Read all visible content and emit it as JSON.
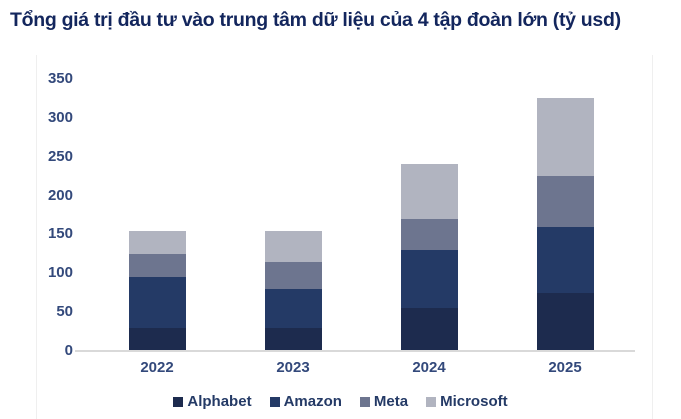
{
  "chart_data": {
    "type": "bar",
    "variant": "stacked-column",
    "title": "Tổng giá trị đầu tư vào trung tâm dữ liệu của 4 tập đoàn lớn (tỷ usd)",
    "categories": [
      "2022",
      "2023",
      "2024",
      "2025"
    ],
    "series": [
      {
        "name": "Alphabet",
        "color": "#1d2b4e",
        "values": [
          30,
          30,
          55,
          75
        ]
      },
      {
        "name": "Amazon",
        "color": "#243a66",
        "values": [
          65,
          50,
          75,
          85
        ]
      },
      {
        "name": "Meta",
        "color": "#6d758f",
        "values": [
          30,
          35,
          40,
          65
        ]
      },
      {
        "name": "Microsoft",
        "color": "#b1b4c0",
        "values": [
          30,
          40,
          70,
          100
        ]
      }
    ],
    "totals": [
      155,
      155,
      240,
      325
    ],
    "ylim": [
      0,
      350
    ],
    "yticks": [
      0,
      50,
      100,
      150,
      200,
      250,
      300,
      350
    ],
    "gridlines": false,
    "legend_position": "bottom",
    "colors": {
      "title_text": "#13265d",
      "tick_text": "#33497b",
      "legend_text": "#243a66",
      "axis_line": "#d9d9d9"
    }
  }
}
